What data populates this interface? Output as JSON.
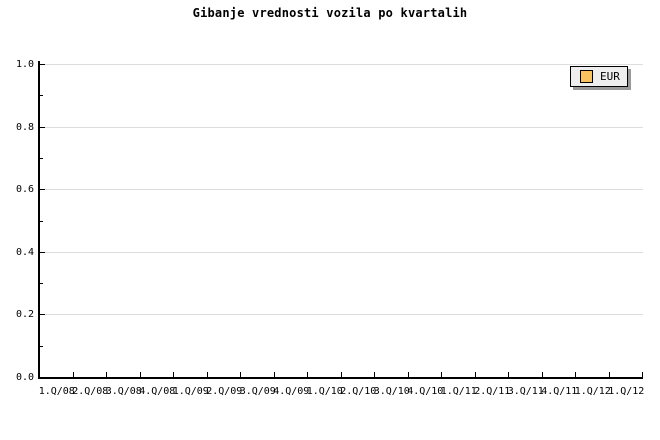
{
  "title": "Gibanje vrednosti vozila po kvartalih",
  "legend": {
    "position": "top-right",
    "items": [
      {
        "label": "EUR",
        "swatch_color": "#F9C45F"
      }
    ]
  },
  "colors": {
    "background": "#FFFFFF",
    "axis": "#000000",
    "grid": "#DDDDDD",
    "text": "#000000",
    "legend_bg": "#EEEEEE",
    "legend_border": "#000000",
    "legend_shadow": "#999999",
    "swatch": "#F9C45F"
  },
  "chart_data": {
    "type": "line",
    "title": "Gibanje vrednosti vozila po kvartalih",
    "categories": [
      "1.Q/08",
      "2.Q/08",
      "3.Q/08",
      "4.Q/08",
      "1.Q/09",
      "2.Q/09",
      "3.Q/09",
      "4.Q/09",
      "1.Q/10",
      "2.Q/10",
      "3.Q/10",
      "4.Q/10",
      "1.Q/11",
      "2.Q/11",
      "3.Q/11",
      "4.Q/11",
      "1.Q/12",
      "1.Q/12"
    ],
    "series": [
      {
        "name": "EUR",
        "values": []
      }
    ],
    "xlabel": "",
    "ylabel": "",
    "ylim": [
      0.0,
      1.0
    ],
    "yticks": [
      0.0,
      0.2,
      0.4,
      0.6,
      0.8,
      1.0
    ],
    "ytick_labels": [
      "0.0",
      "0.2",
      "0.4",
      "0.6",
      "0.8",
      "1.0"
    ],
    "minor_yticks": [
      0.1,
      0.3,
      0.5,
      0.7,
      0.9
    ],
    "grid": "horizontal-major",
    "legend_position": "top-right"
  }
}
